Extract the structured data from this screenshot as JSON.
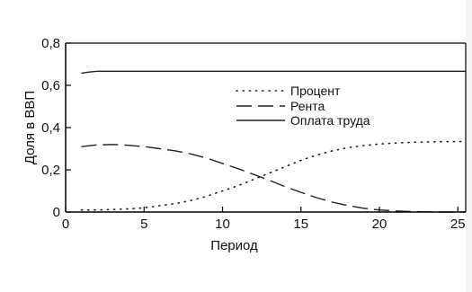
{
  "chart_data": {
    "type": "line",
    "xlabel": "Период",
    "ylabel": "Доля в ВВП",
    "xlim": [
      0,
      25.5
    ],
    "ylim": [
      0,
      0.8
    ],
    "xticks": [
      0,
      5,
      10,
      15,
      20,
      25
    ],
    "xtick_labels": [
      "0",
      "5",
      "10",
      "15",
      "20",
      "25"
    ],
    "yticks": [
      0,
      0.2,
      0.4,
      0.6,
      0.8
    ],
    "ytick_labels": [
      "0",
      "0,2",
      "0,4",
      "0,6",
      "0,8"
    ],
    "legend_position": "upper-center-right",
    "series": [
      {
        "name": "Процент",
        "style": "dotted",
        "x": [
          1,
          2,
          3,
          4,
          5,
          6,
          7,
          8,
          9,
          10,
          11,
          12,
          13,
          14,
          15,
          16,
          17,
          18,
          19,
          20,
          21,
          22,
          23,
          24,
          25,
          26
        ],
        "y": [
          0.01,
          0.01,
          0.012,
          0.015,
          0.02,
          0.03,
          0.04,
          0.055,
          0.075,
          0.1,
          0.125,
          0.155,
          0.185,
          0.215,
          0.245,
          0.27,
          0.29,
          0.305,
          0.315,
          0.322,
          0.327,
          0.33,
          0.332,
          0.333,
          0.334,
          0.334
        ]
      },
      {
        "name": "Рента",
        "style": "dashed",
        "x": [
          1,
          2,
          3,
          4,
          5,
          6,
          7,
          8,
          9,
          10,
          11,
          12,
          13,
          14,
          15,
          16,
          17,
          18,
          19,
          20,
          21,
          22,
          23,
          24,
          25,
          26
        ],
        "y": [
          0.31,
          0.318,
          0.32,
          0.316,
          0.31,
          0.3,
          0.29,
          0.275,
          0.255,
          0.23,
          0.205,
          0.178,
          0.15,
          0.12,
          0.093,
          0.068,
          0.047,
          0.03,
          0.018,
          0.01,
          0.005,
          0.002,
          0.001,
          0.0,
          0.0,
          0.0
        ]
      },
      {
        "name": "Оплата труда",
        "style": "solid",
        "x": [
          1,
          1.5,
          2,
          3,
          5,
          10,
          15,
          20,
          25,
          26
        ],
        "y": [
          0.658,
          0.663,
          0.667,
          0.667,
          0.667,
          0.667,
          0.667,
          0.667,
          0.667,
          0.667
        ]
      }
    ]
  }
}
